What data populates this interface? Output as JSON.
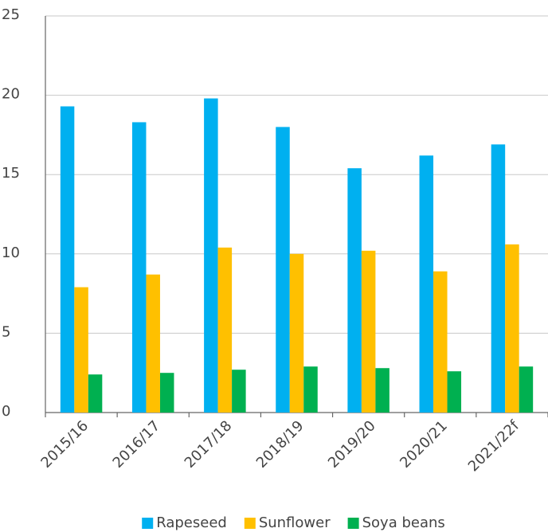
{
  "chart_data": {
    "type": "bar",
    "categories": [
      "2015/16",
      "2016/17",
      "2017/18",
      "2018/19",
      "2019/20",
      "2020/21",
      "2021/22f"
    ],
    "series": [
      {
        "name": "Rapeseed",
        "color": "#00b0f0",
        "values": [
          19.3,
          18.3,
          19.8,
          18.0,
          15.4,
          16.2,
          16.9
        ]
      },
      {
        "name": "Sunflower",
        "color": "#ffc000",
        "values": [
          7.9,
          8.7,
          10.4,
          10.0,
          10.2,
          8.9,
          10.6
        ]
      },
      {
        "name": "Soya beans",
        "color": "#00b050",
        "values": [
          2.4,
          2.5,
          2.7,
          2.9,
          2.8,
          2.6,
          2.9
        ]
      }
    ],
    "ylim": [
      0,
      25
    ],
    "yticks": [
      0,
      5,
      10,
      15,
      20,
      25
    ],
    "grid": true,
    "legend": "bottom"
  }
}
